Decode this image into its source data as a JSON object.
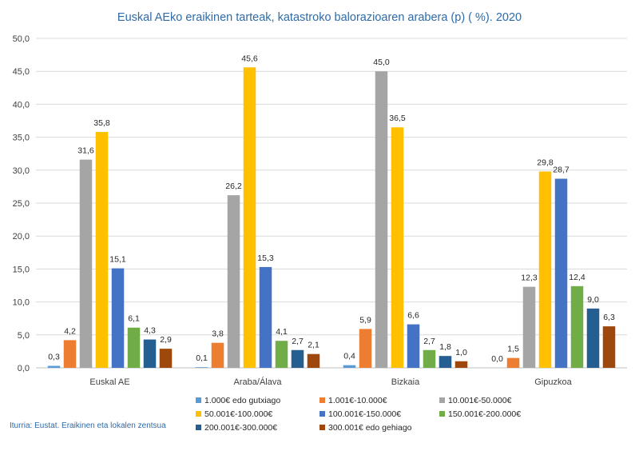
{
  "chart_data": {
    "type": "bar",
    "title": "Euskal AEko eraikinen tarteak, katastroko balorazioaren arabera (p) ( %). 2020",
    "xlabel": "",
    "ylabel": "",
    "ylim": [
      0,
      50
    ],
    "ytick_step": 5,
    "ytick_labels": [
      "0,0",
      "5,0",
      "10,0",
      "15,0",
      "20,0",
      "25,0",
      "30,0",
      "35,0",
      "40,0",
      "45,0",
      "50,0"
    ],
    "grid": true,
    "legend_position": "bottom",
    "categories": [
      "Euskal AE",
      "Araba/Álava",
      "Bizkaia",
      "Gipuzkoa"
    ],
    "series": [
      {
        "name": "1.000€ edo gutxiago",
        "color": "#5B9BD5",
        "values": [
          0.3,
          0.1,
          0.4,
          0.0
        ],
        "labels": [
          "0,3",
          "0,1",
          "0,4",
          "0,0"
        ]
      },
      {
        "name": "1.001€-10.000€",
        "color": "#ED7D31",
        "values": [
          4.2,
          3.8,
          5.9,
          1.5
        ],
        "labels": [
          "4,2",
          "3,8",
          "5,9",
          "1,5"
        ]
      },
      {
        "name": "10.001€-50.000€",
        "color": "#A5A5A5",
        "values": [
          31.6,
          26.2,
          45.0,
          12.3
        ],
        "labels": [
          "31,6",
          "26,2",
          "45,0",
          "12,3"
        ]
      },
      {
        "name": "50.001€-100.000€",
        "color": "#FFC000",
        "values": [
          35.8,
          45.6,
          36.5,
          29.8
        ],
        "labels": [
          "35,8",
          "45,6",
          "36,5",
          "29,8"
        ]
      },
      {
        "name": "100.001€-150.000€",
        "color": "#4472C4",
        "values": [
          15.1,
          15.3,
          6.6,
          28.7
        ],
        "labels": [
          "15,1",
          "15,3",
          "6,6",
          "28,7"
        ]
      },
      {
        "name": "150.001€-200.000€",
        "color": "#70AD47",
        "values": [
          6.1,
          4.1,
          2.7,
          12.4
        ],
        "labels": [
          "6,1",
          "4,1",
          "2,7",
          "12,4"
        ]
      },
      {
        "name": "200.001€-300.000€",
        "color": "#255E91",
        "values": [
          4.3,
          2.7,
          1.8,
          9.0
        ],
        "labels": [
          "4,3",
          "2,7",
          "1,8",
          "9,0"
        ]
      },
      {
        "name": "300.001€ edo gehiago",
        "color": "#9E480E",
        "values": [
          2.9,
          2.1,
          1.0,
          6.3
        ],
        "labels": [
          "2,9",
          "2,1",
          "1,0",
          "6,3"
        ]
      }
    ]
  },
  "source_note": "Iturria: Eustat. Eraikinen eta lokalen zentsua"
}
